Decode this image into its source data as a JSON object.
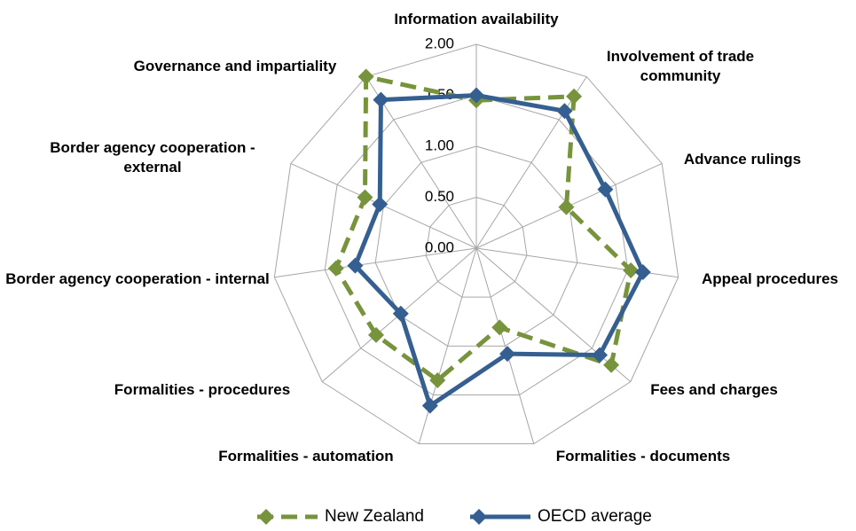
{
  "chart_data": {
    "type": "radar",
    "categories": [
      "Information availability",
      "Involvement of trade community",
      "Advance rulings",
      "Appeal procedures",
      "Fees and charges",
      "Formalities - documents",
      "Formalities - automation",
      "Formalities - procedures",
      "Border agency cooperation - internal",
      "Border agency cooperation - external",
      "Governance and impartiality"
    ],
    "series": [
      {
        "name": "New Zealand",
        "color": "#77933c",
        "dashed": true,
        "values": [
          1.45,
          1.77,
          0.97,
          1.53,
          1.75,
          0.81,
          1.35,
          1.3,
          1.39,
          1.2,
          2.0
        ]
      },
      {
        "name": "OECD average",
        "color": "#365f91",
        "dashed": false,
        "values": [
          1.5,
          1.6,
          1.39,
          1.65,
          1.6,
          1.08,
          1.61,
          0.98,
          1.2,
          1.04,
          1.73
        ]
      }
    ],
    "rlim": [
      0,
      2
    ],
    "rticks": [
      {
        "value": 0,
        "label": "0.00"
      },
      {
        "value": 0.5,
        "label": "0.50"
      },
      {
        "value": 1,
        "label": "1.00"
      },
      {
        "value": 1.5,
        "label": "1.50"
      },
      {
        "value": 2,
        "label": "2.00"
      }
    ],
    "grid": true,
    "legend": "bottom"
  }
}
